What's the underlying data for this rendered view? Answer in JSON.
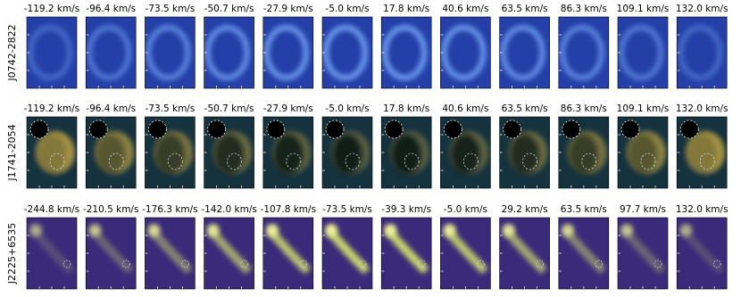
{
  "rows": [
    {
      "label": "J0742-2822",
      "panels": [
        "-119.2 km/s",
        "-96.4 km/s",
        "-73.5 km/s",
        "-50.7 km/s",
        "-27.9 km/s",
        "-5.0 km/s",
        "17.8 km/s",
        "40.6 km/s",
        "63.5 km/s",
        "86.3 km/s",
        "109.1 km/s",
        "132.0 km/s"
      ]
    },
    {
      "label": "J1741-2054",
      "panels": [
        "-119.2 km/s",
        "-96.4 km/s",
        "-73.5 km/s",
        "-50.7 km/s",
        "-27.9 km/s",
        "-5.0 km/s",
        "17.8 km/s",
        "40.6 km/s",
        "63.5 km/s",
        "86.3 km/s",
        "109.1 km/s",
        "132.0 km/s"
      ]
    },
    {
      "label": "J2225+6535",
      "panels": [
        "-244.8 km/s",
        "-210.5 km/s",
        "-176.3 km/s",
        "-142.0 km/s",
        "-107.8 km/s",
        "-73.5 km/s",
        "-39.3 km/s",
        "-5.0 km/s",
        "29.2 km/s",
        "63.5 km/s",
        "97.7 km/s",
        "132.0 km/s"
      ]
    }
  ]
}
